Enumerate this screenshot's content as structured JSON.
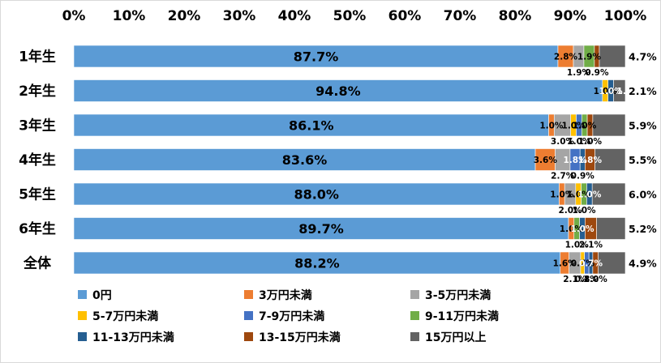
{
  "chart_data": {
    "type": "bar",
    "orientation": "horizontal",
    "stacked": "percent",
    "title": "",
    "xlabel": "",
    "ylabel": "",
    "xlim": [
      0,
      100
    ],
    "x_ticks": [
      "0%",
      "10%",
      "20%",
      "30%",
      "40%",
      "50%",
      "60%",
      "70%",
      "80%",
      "90%",
      "100%"
    ],
    "x_axis_position": "top",
    "grid": false,
    "legend_position": "bottom",
    "categories": [
      "1年生",
      "2年生",
      "3年生",
      "4年生",
      "5年生",
      "6年生",
      "全体"
    ],
    "series": [
      {
        "name": "0円",
        "color": "#5B9BD5",
        "values": [
          87.7,
          94.8,
          86.1,
          83.6,
          88.0,
          89.7,
          88.2
        ]
      },
      {
        "name": "3万円未満",
        "color": "#ED7D31",
        "values": [
          2.8,
          0.0,
          1.0,
          3.6,
          1.0,
          1.0,
          1.6
        ]
      },
      {
        "name": "3-5万円未満",
        "color": "#A5A5A5",
        "values": [
          1.9,
          0.0,
          3.0,
          2.7,
          2.0,
          0.0,
          2.1
        ]
      },
      {
        "name": "5-7万円未満",
        "color": "#FFC000",
        "values": [
          0.0,
          1.0,
          1.0,
          0.0,
          1.0,
          0.0,
          0.7
        ]
      },
      {
        "name": "7-9万円未満",
        "color": "#4472C4",
        "values": [
          0.0,
          0.0,
          1.0,
          1.8,
          0.0,
          0.0,
          0.8
        ]
      },
      {
        "name": "9-11万円未満",
        "color": "#70AD47",
        "values": [
          1.9,
          0.0,
          1.0,
          0.0,
          1.0,
          1.0,
          0.0
        ]
      },
      {
        "name": "11-13万円未満",
        "color": "#255E91",
        "values": [
          0.0,
          1.0,
          0.0,
          0.9,
          1.0,
          1.0,
          0.7
        ]
      },
      {
        "name": "13-15万円未満",
        "color": "#9E480E",
        "values": [
          0.9,
          0.0,
          1.0,
          1.8,
          0.0,
          2.1,
          1.0
        ]
      },
      {
        "name": "15万円以上",
        "color": "#636363",
        "values": [
          4.7,
          2.1,
          5.9,
          5.5,
          6.0,
          5.2,
          4.9
        ]
      }
    ],
    "data_labels": [
      [
        {
          "series": 1,
          "text": "2.8%"
        },
        {
          "series": 2,
          "text": "1.9%"
        },
        {
          "series": 5,
          "text": "1.9%"
        },
        {
          "series": 7,
          "text": "0.9%"
        },
        {
          "series": 8,
          "text": "4.7%"
        }
      ],
      [
        {
          "series": 3,
          "text": "1.0%"
        },
        {
          "series": 6,
          "text": "1.0%"
        },
        {
          "series": 6,
          "text": "1.0%"
        },
        {
          "series": 8,
          "text": "2.1%"
        }
      ],
      [
        {
          "series": 1,
          "text": "1.0%"
        },
        {
          "series": 2,
          "text": "3.0%"
        },
        {
          "series": 3,
          "text": "1.0%"
        },
        {
          "series": 4,
          "text": "1.0%"
        },
        {
          "series": 5,
          "text": "1.0%"
        },
        {
          "series": 7,
          "text": "1.0%"
        },
        {
          "series": 8,
          "text": "5.9%"
        }
      ],
      [
        {
          "series": 1,
          "text": "3.6%"
        },
        {
          "series": 2,
          "text": "2.7%"
        },
        {
          "series": 4,
          "text": "1.8%"
        },
        {
          "series": 6,
          "text": "0.9%"
        },
        {
          "series": 7,
          "text": "1.8%"
        },
        {
          "series": 8,
          "text": "5.5%"
        }
      ],
      [
        {
          "series": 1,
          "text": "1.0%"
        },
        {
          "series": 2,
          "text": "2.0%"
        },
        {
          "series": 3,
          "text": "1.0%"
        },
        {
          "series": 5,
          "text": "1.0%"
        },
        {
          "series": 6,
          "text": "1.0%"
        },
        {
          "series": 8,
          "text": "6.0%"
        }
      ],
      [
        {
          "series": 1,
          "text": "1.0%"
        },
        {
          "series": 5,
          "text": "1.0%"
        },
        {
          "series": 6,
          "text": "1.0%"
        },
        {
          "series": 7,
          "text": "2.1%"
        },
        {
          "series": 8,
          "text": "5.2%"
        }
      ],
      [
        {
          "series": 1,
          "text": "1.6%"
        },
        {
          "series": 2,
          "text": "2.1%"
        },
        {
          "series": 3,
          "text": "0.7%"
        },
        {
          "series": 4,
          "text": "0.8%"
        },
        {
          "series": 6,
          "text": "0.7%"
        },
        {
          "series": 7,
          "text": "1.0%"
        },
        {
          "series": 8,
          "text": "4.9%"
        }
      ]
    ]
  }
}
